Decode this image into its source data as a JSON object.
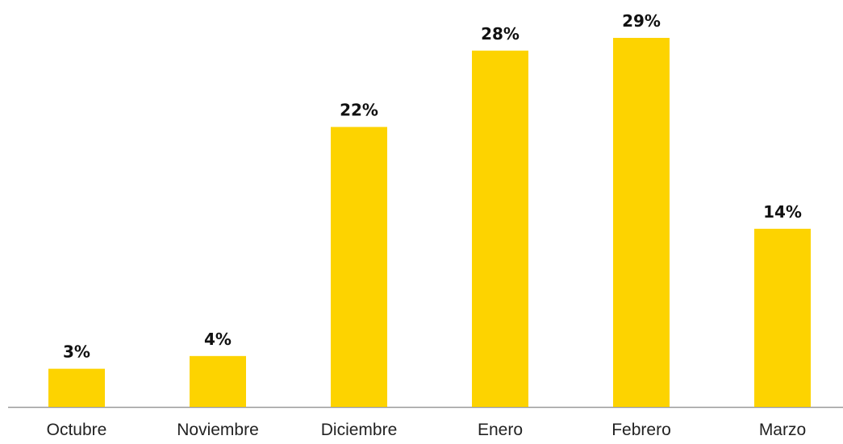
{
  "chart_data": {
    "type": "bar",
    "categories": [
      "Octubre",
      "Noviembre",
      "Diciembre",
      "Enero",
      "Febrero",
      "Marzo"
    ],
    "values": [
      3,
      4,
      22,
      28,
      29,
      14
    ],
    "value_labels": [
      "3%",
      "4%",
      "22%",
      "28%",
      "29%",
      "14%"
    ],
    "color": "#fdd300"
  }
}
